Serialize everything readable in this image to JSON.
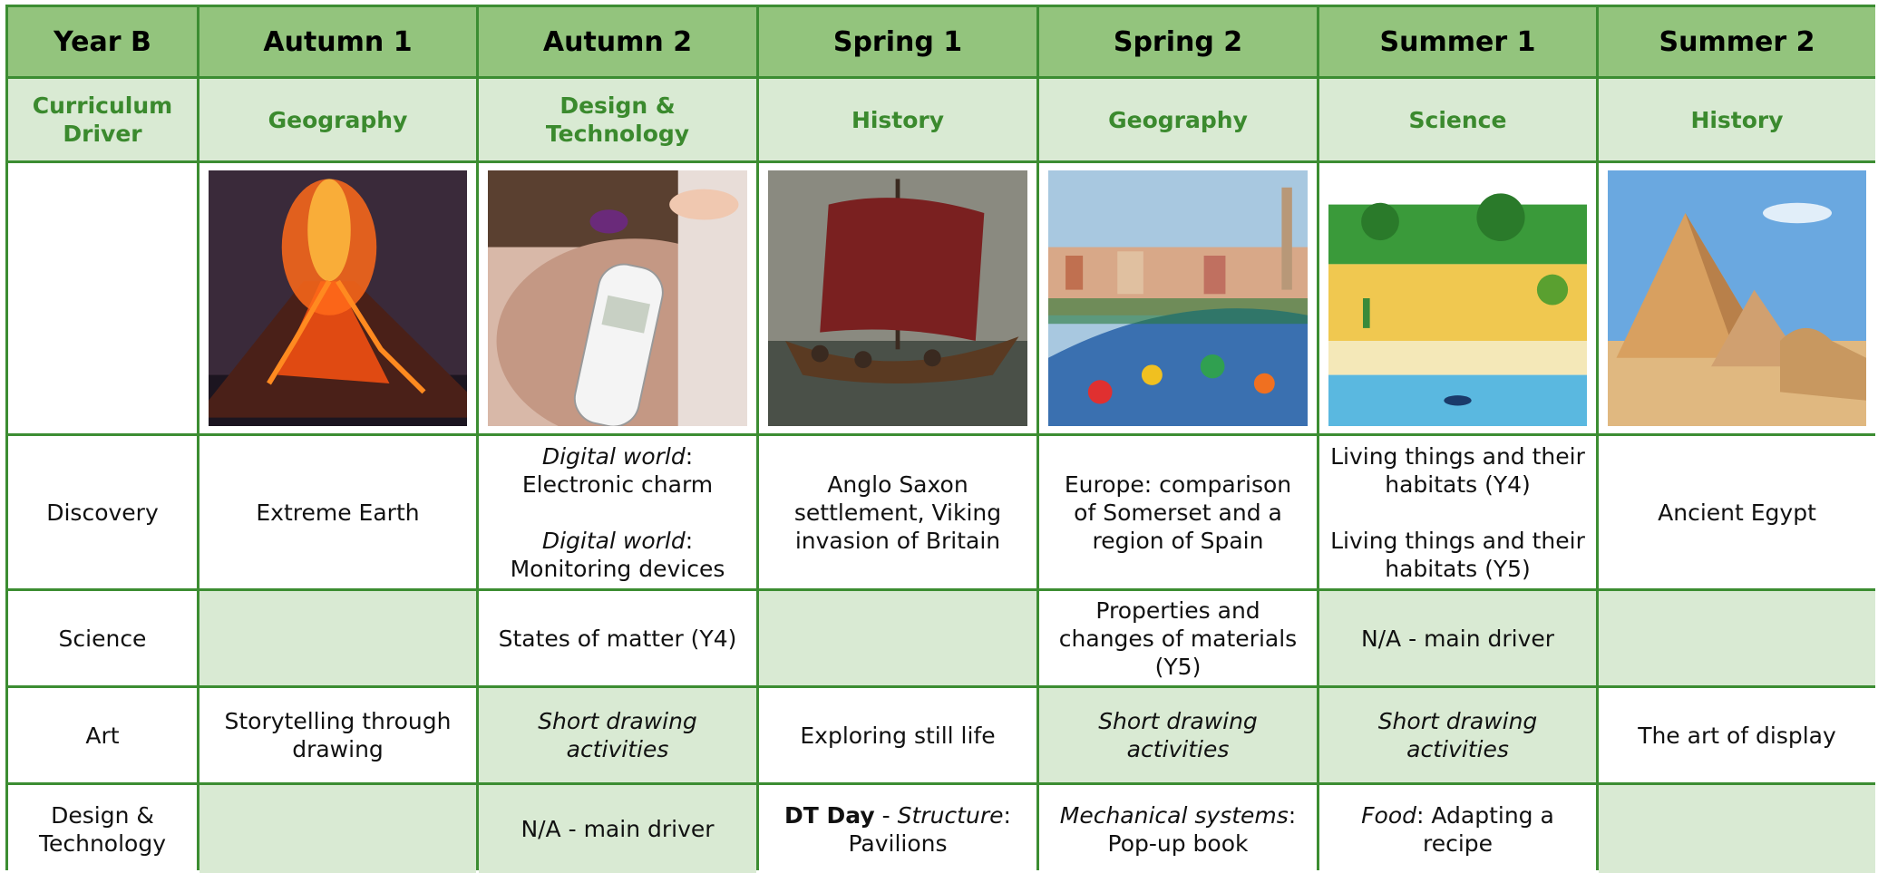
{
  "table": {
    "header": [
      "Year B",
      "Autumn 1",
      "Autumn 2",
      "Spring 1",
      "Spring 2",
      "Summer 1",
      "Summer 2"
    ],
    "driver": {
      "label": "Curriculum Driver",
      "values": [
        "Geography",
        "Design & Technology",
        "History",
        "Geography",
        "Science",
        "History"
      ]
    },
    "rows": [
      {
        "label": "Discovery",
        "cells": [
          {
            "shaded": false,
            "paragraphs": [
              [
                "Extreme Earth"
              ]
            ]
          },
          {
            "shaded": false,
            "paragraphs": [
              [
                {
                  "text": "Digital world",
                  "style": "italic"
                },
                ": Electronic charm"
              ],
              [
                {
                  "text": "Digital world",
                  "style": "italic"
                },
                ": Monitoring devices"
              ]
            ]
          },
          {
            "shaded": false,
            "paragraphs": [
              [
                "Anglo Saxon settlement, Viking invasion of Britain"
              ]
            ]
          },
          {
            "shaded": false,
            "paragraphs": [
              [
                "Europe: comparison of Somerset and a region of Spain"
              ]
            ]
          },
          {
            "shaded": false,
            "paragraphs": [
              [
                "Living things and their habitats (Y4)"
              ],
              [
                "Living things and their habitats (Y5)"
              ]
            ]
          },
          {
            "shaded": false,
            "paragraphs": [
              [
                "Ancient Egypt"
              ]
            ]
          }
        ]
      },
      {
        "label": "Science",
        "cells": [
          {
            "shaded": true,
            "paragraphs": []
          },
          {
            "shaded": false,
            "paragraphs": [
              [
                "States of matter (Y4)"
              ]
            ]
          },
          {
            "shaded": true,
            "paragraphs": []
          },
          {
            "shaded": false,
            "paragraphs": [
              [
                "Properties and changes of materials (Y5)"
              ]
            ]
          },
          {
            "shaded": true,
            "paragraphs": [
              [
                "N/A - main driver"
              ]
            ]
          },
          {
            "shaded": true,
            "paragraphs": []
          }
        ]
      },
      {
        "label": "Art",
        "cells": [
          {
            "shaded": false,
            "paragraphs": [
              [
                "Storytelling through drawing"
              ]
            ]
          },
          {
            "shaded": true,
            "paragraphs": [
              [
                {
                  "text": "Short drawing activities",
                  "style": "italic"
                }
              ]
            ]
          },
          {
            "shaded": false,
            "paragraphs": [
              [
                "Exploring still life"
              ]
            ]
          },
          {
            "shaded": true,
            "paragraphs": [
              [
                {
                  "text": "Short drawing activities",
                  "style": "italic"
                }
              ]
            ]
          },
          {
            "shaded": true,
            "paragraphs": [
              [
                {
                  "text": "Short drawing activities",
                  "style": "italic"
                }
              ]
            ]
          },
          {
            "shaded": false,
            "paragraphs": [
              [
                "The art of display"
              ]
            ]
          }
        ]
      },
      {
        "label": "Design & Technology",
        "cells": [
          {
            "shaded": true,
            "paragraphs": []
          },
          {
            "shaded": true,
            "paragraphs": [
              [
                "N/A - main driver"
              ]
            ]
          },
          {
            "shaded": false,
            "paragraphs": [
              [
                {
                  "text": "DT Day",
                  "style": "bold"
                },
                " - ",
                {
                  "text": "Structure",
                  "style": "italic"
                },
                ": Pavilions"
              ]
            ]
          },
          {
            "shaded": false,
            "paragraphs": [
              [
                {
                  "text": "Mechanical systems",
                  "style": "italic"
                },
                ": Pop-up book"
              ]
            ]
          },
          {
            "shaded": false,
            "paragraphs": [
              [
                {
                  "text": "Food",
                  "style": "italic"
                },
                ": Adapting a recipe"
              ]
            ]
          },
          {
            "shaded": true,
            "paragraphs": []
          }
        ]
      }
    ]
  }
}
